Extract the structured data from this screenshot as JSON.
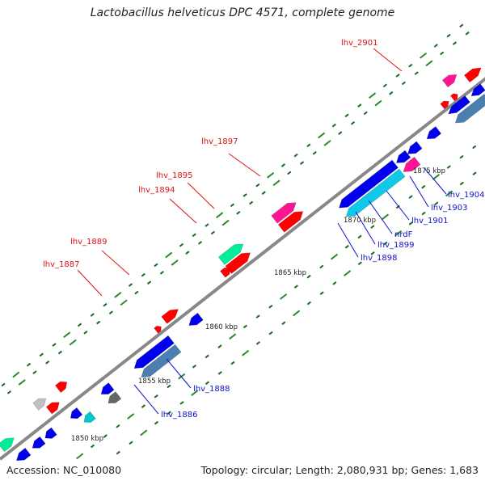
{
  "title": "Lactobacillus helveticus DPC 4571, complete genome",
  "footer": {
    "accession": "Accession: NC_010080",
    "summary": "Topology: circular; Length: 2,080,931 bp; Genes: 1,683"
  },
  "colors": {
    "backbone": "#888888",
    "tick_major": "#2a8a2a",
    "tick_minor": "#1a6a1a",
    "label_forward": "#dd1111",
    "label_reverse": "#1111cc",
    "red": "#ff0000",
    "blue": "#0000ee",
    "pink": "#ff1493",
    "green": "#00ee99",
    "steelblue": "#4a7fb0",
    "cyan": "#10c8e8",
    "gray": "#c0c0c0",
    "darkgray": "#666666",
    "teal": "#00c8c8"
  },
  "scale_labels": [
    "1850 kbp",
    "1855 kbp",
    "1860 kbp",
    "1865 kbp",
    "1870 kbp",
    "1875 kbp"
  ],
  "forward_labels": [
    "lhv_2901",
    "lhv_1897",
    "lhv_1895",
    "lhv_1894",
    "lhv_1889",
    "lhv_1887"
  ],
  "reverse_labels": [
    "lhv_1904",
    "lhv_1903",
    "lhv_1901",
    "nrdF",
    "lhv_1899",
    "lhv_1898",
    "lhv_1888",
    "lhv_1886"
  ]
}
